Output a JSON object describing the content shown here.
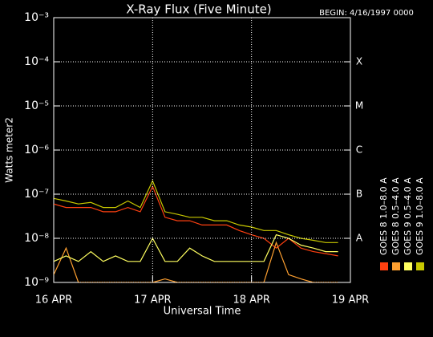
{
  "chart_data": {
    "type": "line",
    "title": "X-Ray Flux (Five Minute)",
    "subtitle": "BEGIN: 4/16/1997 0000",
    "xlabel": "Universal Time",
    "ylabel": "Watts meter2",
    "yscale": "log",
    "grid": true,
    "legend": "right",
    "x": [
      0,
      0.125,
      0.25,
      0.375,
      0.5,
      0.625,
      0.75,
      0.875,
      1,
      1.125,
      1.25,
      1.375,
      1.5,
      1.625,
      1.75,
      1.875,
      2,
      2.125,
      2.25,
      2.375,
      2.5,
      2.625,
      2.75,
      2.875
    ],
    "xlim": [
      0,
      3
    ],
    "xticks": [
      {
        "value": 0,
        "label": "16 APR"
      },
      {
        "value": 1,
        "label": "17 APR"
      },
      {
        "value": 2,
        "label": "18 APR"
      },
      {
        "value": 3,
        "label": "19 APR"
      }
    ],
    "ylim": [
      1e-09,
      0.001
    ],
    "yticks": [
      {
        "value": 1e-09,
        "label": "10⁻⁹"
      },
      {
        "value": 1e-08,
        "label": "10⁻⁸"
      },
      {
        "value": 1e-07,
        "label": "10⁻⁷"
      },
      {
        "value": 1e-06,
        "label": "10⁻⁶"
      },
      {
        "value": 1e-05,
        "label": "10⁻⁵"
      },
      {
        "value": 0.0001,
        "label": "10⁻⁴"
      },
      {
        "value": 0.001,
        "label": "10⁻³"
      }
    ],
    "y2lim": [
      1e-09,
      0.001
    ],
    "y2ticks": [
      {
        "value": 1e-08,
        "label": "A"
      },
      {
        "value": 1e-07,
        "label": "B"
      },
      {
        "value": 1e-06,
        "label": "C"
      },
      {
        "value": 1e-05,
        "label": "M"
      },
      {
        "value": 0.0001,
        "label": "X"
      }
    ],
    "series": [
      {
        "name": "GOES 8 1.0–8.0 A",
        "color": "#ff4010",
        "values": [
          6e-08,
          5e-08,
          5e-08,
          5e-08,
          4e-08,
          4e-08,
          5e-08,
          4e-08,
          1.5e-07,
          3e-08,
          2.5e-08,
          2.5e-08,
          2e-08,
          2e-08,
          2e-08,
          1.5e-08,
          1.2e-08,
          1e-08,
          6e-09,
          1e-08,
          6e-09,
          5e-09,
          4.5e-09,
          4e-09
        ]
      },
      {
        "name": "GOES 8 0.5–4.0 A",
        "color": "#ffa030",
        "values": [
          1.5e-09,
          6e-09,
          1e-09,
          1e-09,
          1e-09,
          1e-09,
          1e-09,
          1e-09,
          1e-09,
          1.2e-09,
          1e-09,
          1e-09,
          1e-09,
          1e-09,
          1e-09,
          1e-09,
          1e-09,
          1e-09,
          8e-09,
          1.5e-09,
          1.2e-09,
          1e-09,
          1e-09,
          1e-09
        ]
      },
      {
        "name": "GOES 9 0.5–4.0 A",
        "color": "#ffff60",
        "values": [
          3e-09,
          4e-09,
          3e-09,
          5e-09,
          3e-09,
          4e-09,
          3e-09,
          3e-09,
          1e-08,
          3e-09,
          3e-09,
          6e-09,
          4e-09,
          3e-09,
          3e-09,
          3e-09,
          3e-09,
          3e-09,
          1.2e-08,
          1e-08,
          7e-09,
          6e-09,
          5e-09,
          5e-09
        ]
      },
      {
        "name": "GOES 9 1.0–8.0 A",
        "color": "#c8c800",
        "values": [
          8e-08,
          7e-08,
          6e-08,
          6.5e-08,
          5e-08,
          5e-08,
          7e-08,
          5e-08,
          2e-07,
          4e-08,
          3.5e-08,
          3e-08,
          3e-08,
          2.5e-08,
          2.5e-08,
          2e-08,
          1.8e-08,
          1.5e-08,
          1.5e-08,
          1.2e-08,
          1e-08,
          9e-09,
          8e-09,
          8e-09
        ]
      }
    ]
  }
}
